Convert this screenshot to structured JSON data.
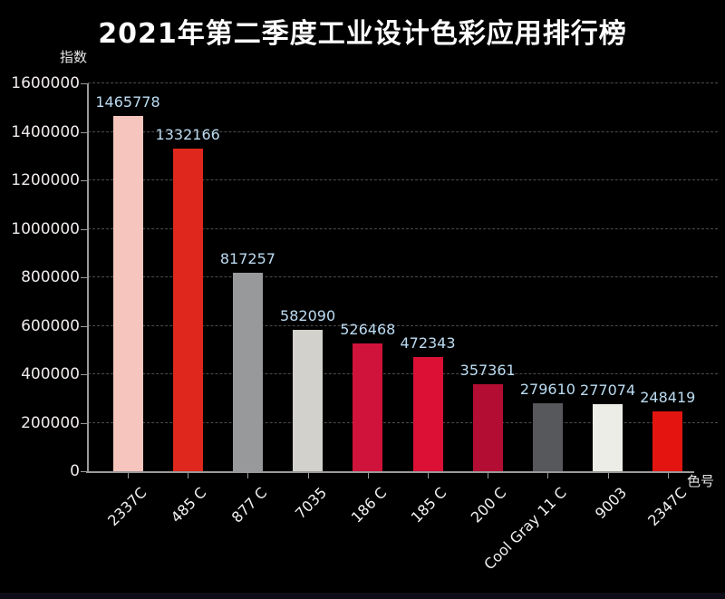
{
  "chart_data": {
    "type": "bar",
    "title": "2021年第二季度工业设计色彩应用排行榜",
    "ylabel": "指数",
    "xlabel": "色号",
    "categories": [
      "2337C",
      "485 C",
      "877 C",
      "7035",
      "186 C",
      "185 C",
      "200 C",
      "Cool Gray 11 C",
      "9003",
      "2347C"
    ],
    "values": [
      1465778,
      1332166,
      817257,
      582090,
      526468,
      472343,
      357361,
      279610,
      277074,
      248419
    ],
    "bar_colors": [
      "#f6c5bd",
      "#e0271d",
      "#98999b",
      "#d2d1cc",
      "#d0133a",
      "#dc0f35",
      "#b30d33",
      "#56585c",
      "#ecede7",
      "#e41510"
    ],
    "ylim": [
      0,
      1600000
    ],
    "yticks": [
      0,
      200000,
      400000,
      600000,
      800000,
      1000000,
      1200000,
      1400000,
      1600000
    ],
    "grid": "horizontal-dashed",
    "legend": "none",
    "colors": {
      "background": "#000000",
      "axis": "#9a9a9a",
      "grid": "#4d4d4d",
      "value_label": "#bcdcf2",
      "tick_label": "#f0eaea",
      "category_label": "#f2f2f2",
      "title": "#ffffff",
      "footer_strip": "#0e0e18"
    }
  }
}
